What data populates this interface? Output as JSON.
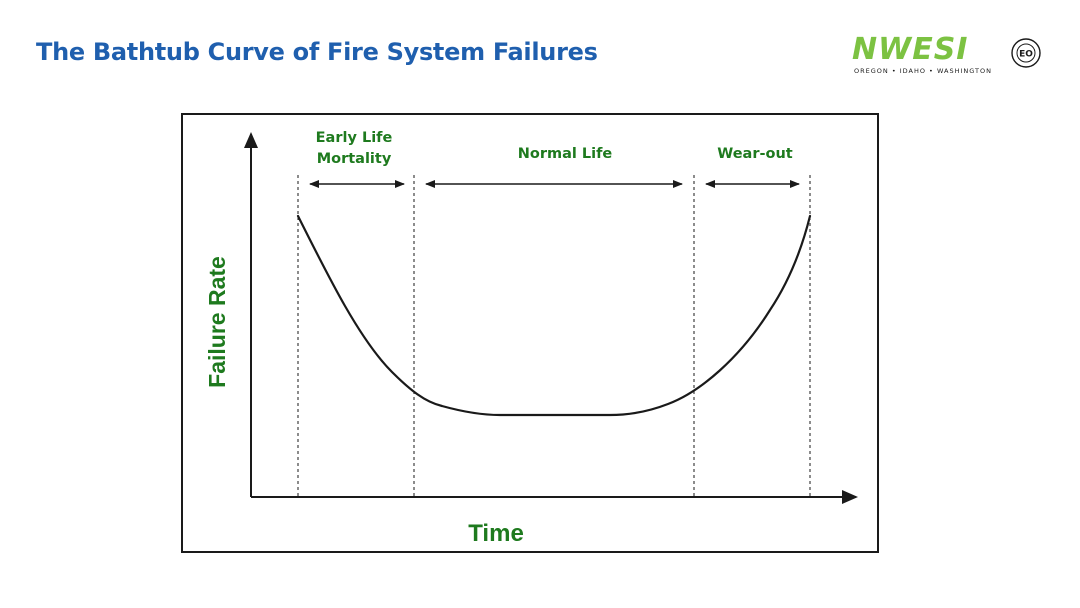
{
  "slide": {
    "title": "The Bathtub Curve of Fire System Failures"
  },
  "logo": {
    "wordmark": "NWESI",
    "tagline": "OREGON • IDAHO • WASHINGTON",
    "seal_text": "EO",
    "seal_ring_text": "EMPLOYEE OWNED"
  },
  "diagram": {
    "phases": [
      {
        "label_lines": [
          "Early Life",
          "Mortality"
        ]
      },
      {
        "label_lines": [
          "Normal Life"
        ]
      },
      {
        "label_lines": [
          "Wear-out"
        ]
      }
    ],
    "y_axis_label": "Failure Rate",
    "x_axis_label": "Time"
  },
  "colors": {
    "title": "#1f5fae",
    "label_green": "#1e7a1e",
    "logo_green": "#7cc242",
    "line": "#1a1a1a"
  }
}
